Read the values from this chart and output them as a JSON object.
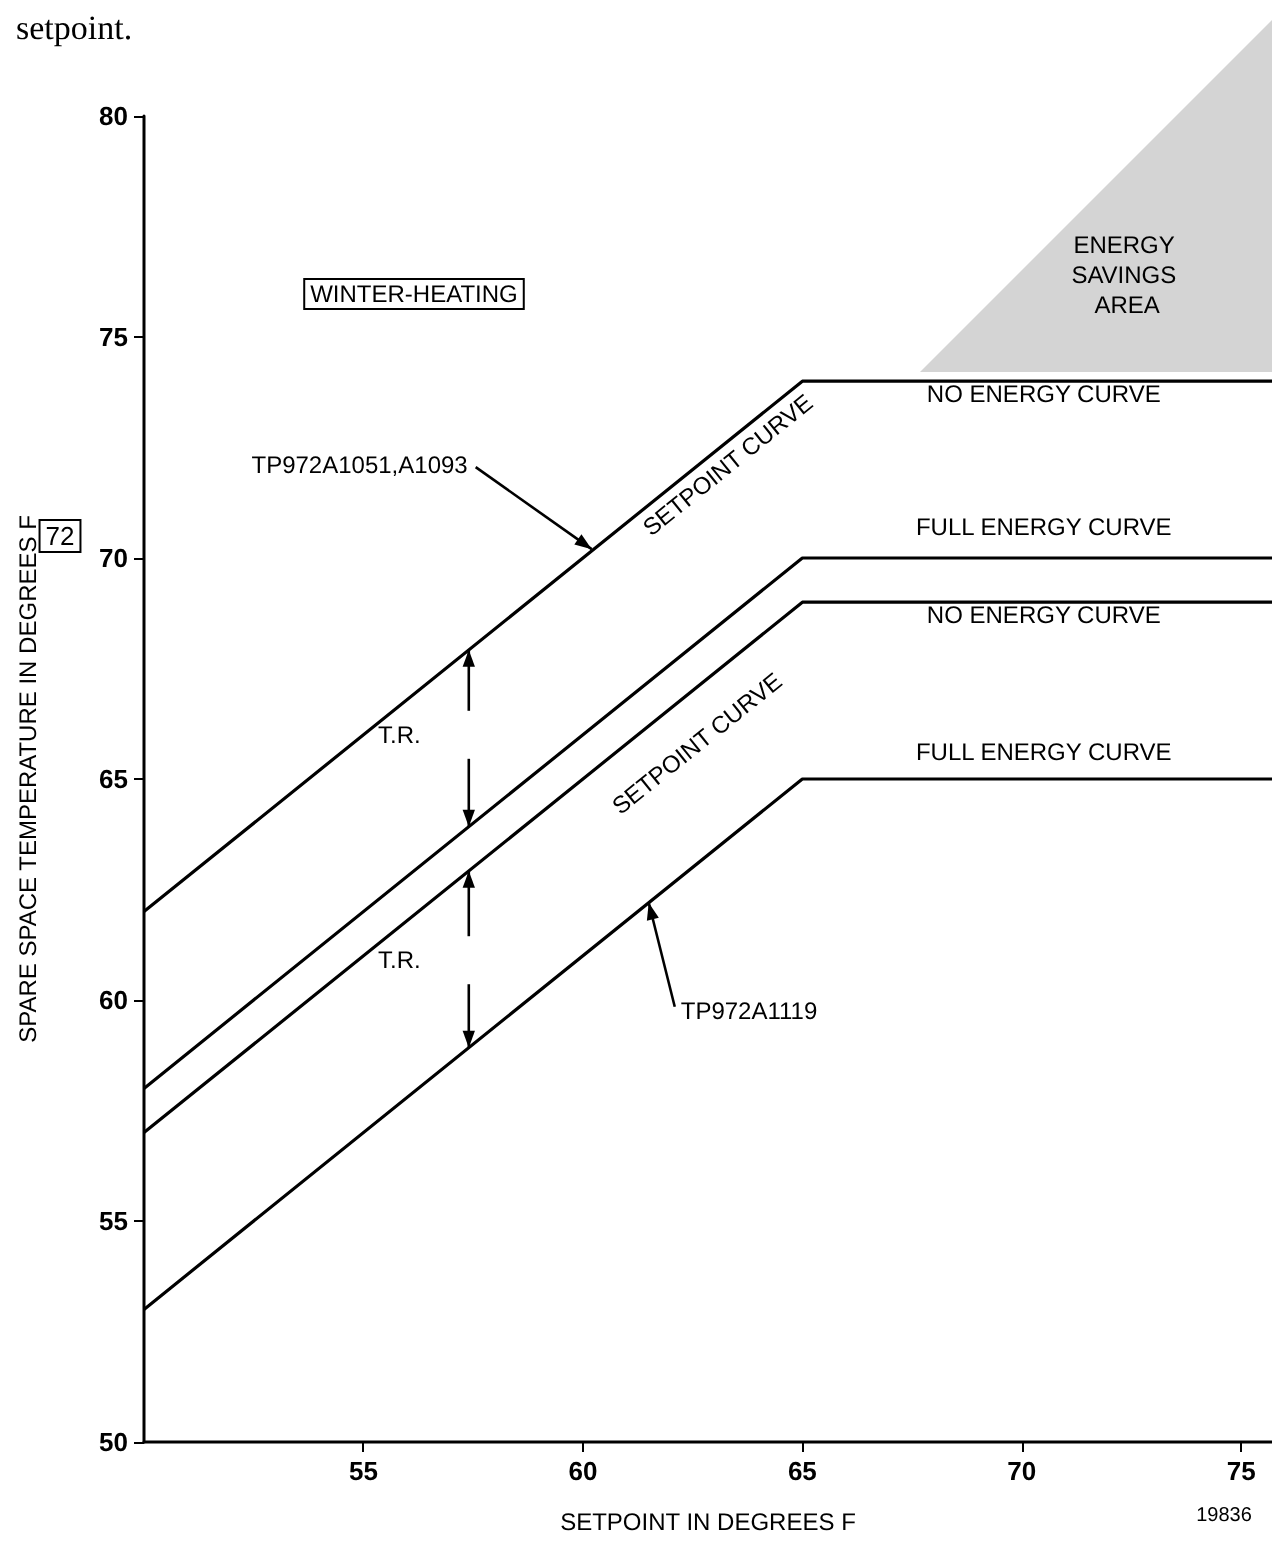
{
  "chart_data": {
    "type": "line",
    "xlabel": "SETPOINT IN DEGREES F",
    "ylabel": "SPARE SPACE TEMPERATURE IN DEGREES F",
    "xlim": [
      50,
      75.7
    ],
    "ylim": [
      50,
      80
    ],
    "xticks": [
      55,
      60,
      65,
      70,
      75
    ],
    "yticks": [
      50,
      55,
      60,
      65,
      70,
      75,
      80
    ],
    "grid": false,
    "marker": "none",
    "line_style": "solid",
    "x": [
      50,
      65,
      75.7
    ],
    "series": [
      {
        "color": "#000000",
        "values": [
          62,
          74,
          74
        ]
      },
      {
        "color": "#000000",
        "values": [
          58,
          70,
          70
        ]
      },
      {
        "color": "#000000",
        "values": [
          57,
          69,
          69
        ]
      },
      {
        "color": "#000000",
        "values": [
          53,
          65,
          65
        ]
      }
    ],
    "annotations": [
      "setpoint.",
      "WINTER-HEATING",
      "72",
      "19836",
      {
        "text": "TP972A1051,A1093",
        "x": 60.2,
        "y": 70.2
      },
      {
        "text": "TP972A1119",
        "x": 61.5,
        "y": 62.2
      },
      "SETPOINT CURVE",
      "SETPOINT CURVE",
      "NO ENERGY CURVE",
      "FULL ENERGY CURVE",
      "NO ENERGY CURVE",
      "FULL ENERGY CURVE",
      "T.R.",
      "T.R.",
      "ENERGY SAVINGS AREA"
    ]
  }
}
